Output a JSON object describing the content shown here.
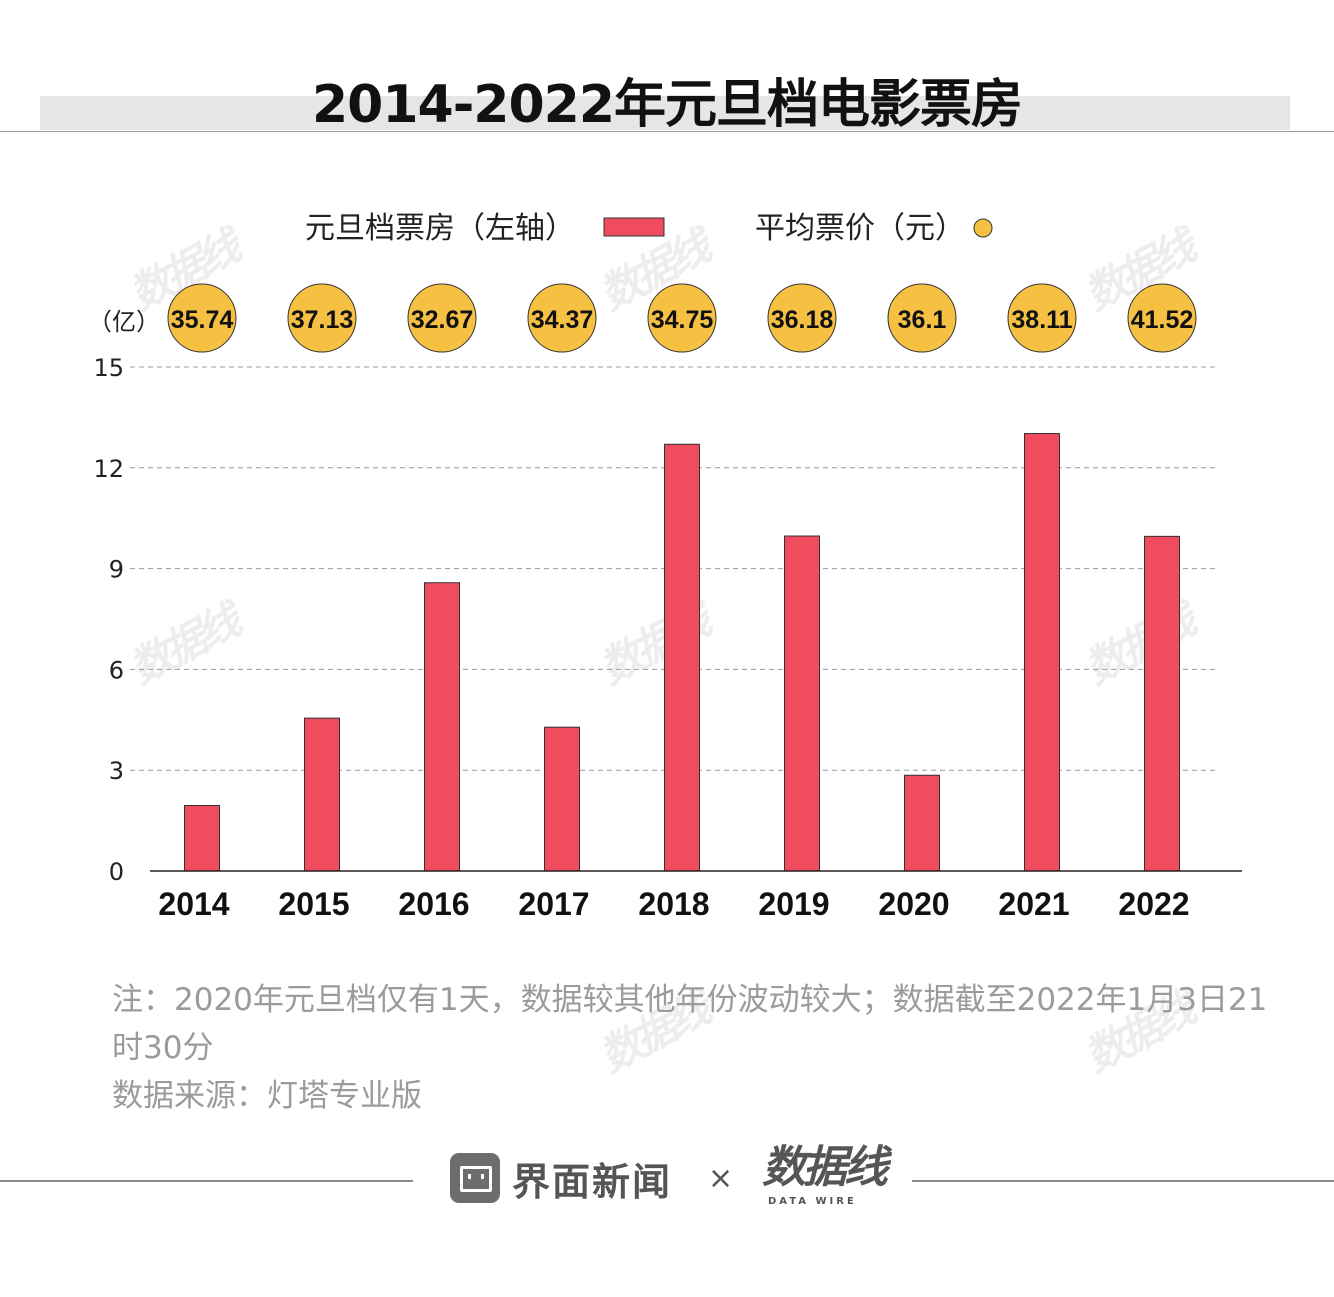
{
  "title": "2014-2022年元旦档电影票房",
  "legend": {
    "box_office": "元旦档票房（左轴）",
    "avg_price": "平均票价（元）"
  },
  "y_unit_label": "（亿）",
  "note": "注：2020年元旦档仅有1天，数据较其他年份波动较大；数据截至2022年1月3日21时30分",
  "source": "数据来源：灯塔专业版",
  "footer": {
    "brand": "界面新闻",
    "times": "×",
    "partner": "数据线",
    "partner_sub": "DATA WIRE"
  },
  "watermark": "数据线",
  "colors": {
    "bar": "#f04c5e",
    "bubble": "#f6c143",
    "grid": "#9a9a9a"
  },
  "chart_data": {
    "type": "bar",
    "categories": [
      "2014",
      "2015",
      "2016",
      "2017",
      "2018",
      "2019",
      "2020",
      "2021",
      "2022"
    ],
    "series": [
      {
        "name": "元旦档票房（左轴）",
        "values": [
          1.95,
          4.55,
          8.58,
          4.28,
          12.7,
          9.97,
          2.85,
          13.02,
          9.96
        ]
      },
      {
        "name": "平均票价（元）",
        "values": [
          35.74,
          37.13,
          32.67,
          34.37,
          34.75,
          36.18,
          36.1,
          38.11,
          41.52
        ]
      }
    ],
    "price_labels": [
      "35.74",
      "37.13",
      "32.67",
      "34.37",
      "34.75",
      "36.18",
      "36.1",
      "38.11",
      "41.52"
    ],
    "yticks": [
      "0",
      "3",
      "6",
      "9",
      "12",
      "15"
    ],
    "ylim": [
      0,
      15
    ],
    "grid": true
  }
}
